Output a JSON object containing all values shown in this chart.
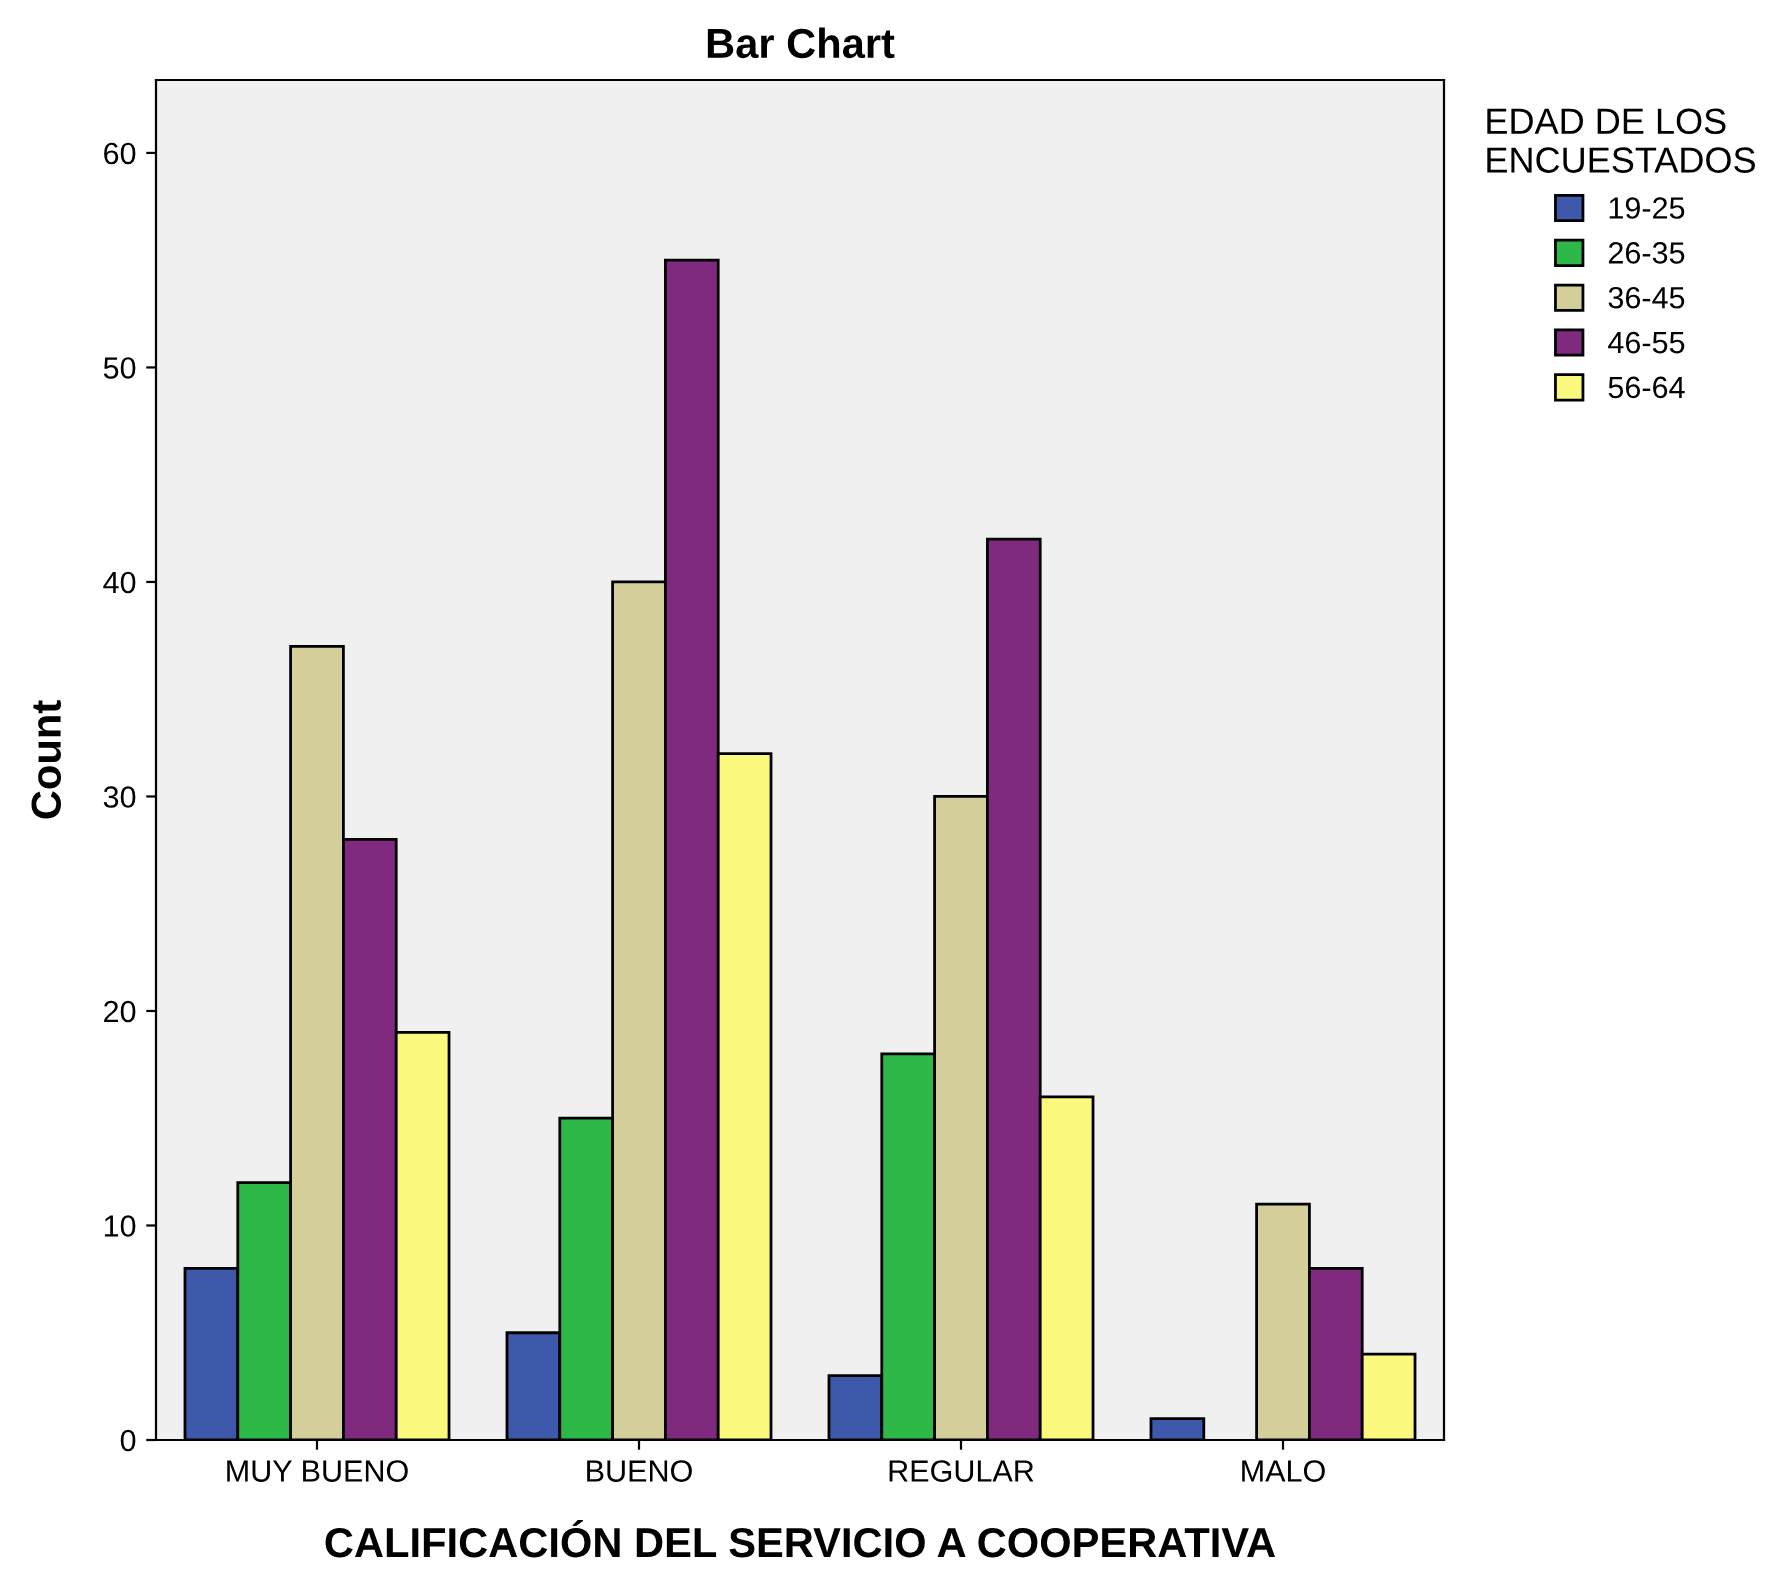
{
  "chart_data": {
    "type": "bar",
    "title": "Bar Chart",
    "xlabel": "CALIFICACIÓN DEL SERVICIO A COOPERATIVA",
    "ylabel": "Count",
    "legend_title": "EDAD DE LOS\nENCUESTADOS",
    "categories": [
      "MUY BUENO",
      "BUENO",
      "REGULAR",
      "MALO"
    ],
    "series": [
      {
        "name": "19-25",
        "color": "#3e58ac",
        "values": [
          8,
          5,
          3,
          1
        ]
      },
      {
        "name": "26-35",
        "color": "#2eb848",
        "values": [
          12,
          15,
          18,
          null
        ]
      },
      {
        "name": "36-45",
        "color": "#d4cf9a",
        "values": [
          37,
          40,
          30,
          11
        ]
      },
      {
        "name": "46-55",
        "color": "#7f2a7e",
        "values": [
          28,
          55,
          42,
          8
        ]
      },
      {
        "name": "56-64",
        "color": "#fbf87e",
        "values": [
          19,
          32,
          16,
          4
        ]
      }
    ],
    "ylim": [
      0,
      63.4
    ],
    "yticks": [
      0,
      10,
      20,
      30,
      40,
      50,
      60
    ],
    "grid": false,
    "legend": "top right"
  }
}
